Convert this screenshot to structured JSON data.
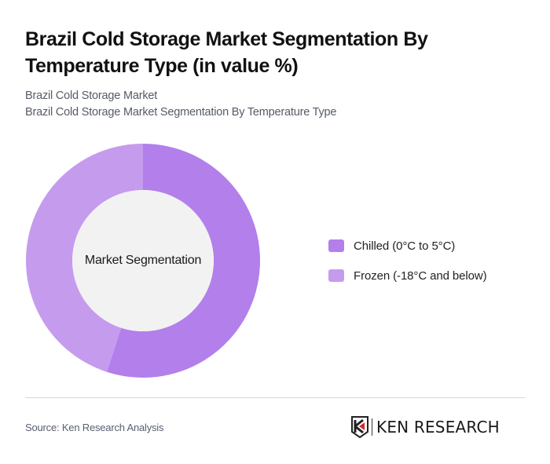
{
  "header": {
    "title": "Brazil Cold Storage Market Segmentation By Temperature Type (in value %)",
    "subtitle_line1": "Brazil Cold Storage Market",
    "subtitle_line2": "Brazil Cold Storage Market Segmentation By Temperature Type"
  },
  "chart": {
    "center_label": "Market Segmentation",
    "legend": [
      {
        "label": "Chilled (0°C to 5°C)",
        "color": "#b27feb"
      },
      {
        "label": "Frozen (-18°C and below)",
        "color": "#c59bee"
      }
    ]
  },
  "chart_data": {
    "type": "pie",
    "variant": "donut",
    "title": "Brazil Cold Storage Market Segmentation By Temperature Type (in value %)",
    "subtitle": "Brazil Cold Storage Market Segmentation By Temperature Type",
    "center_label": "Market Segmentation",
    "categories": [
      "Chilled (0°C to 5°C)",
      "Frozen (-18°C and below)"
    ],
    "values": [
      55,
      45
    ],
    "colors": [
      "#b27feb",
      "#c59bee"
    ],
    "legend_position": "right",
    "start_angle_deg": 0,
    "direction": "clockwise"
  },
  "footer": {
    "source": "Source: Ken Research Analysis",
    "logo_text": "KEN RESEARCH",
    "logo_accent_color": "#d6262f"
  }
}
